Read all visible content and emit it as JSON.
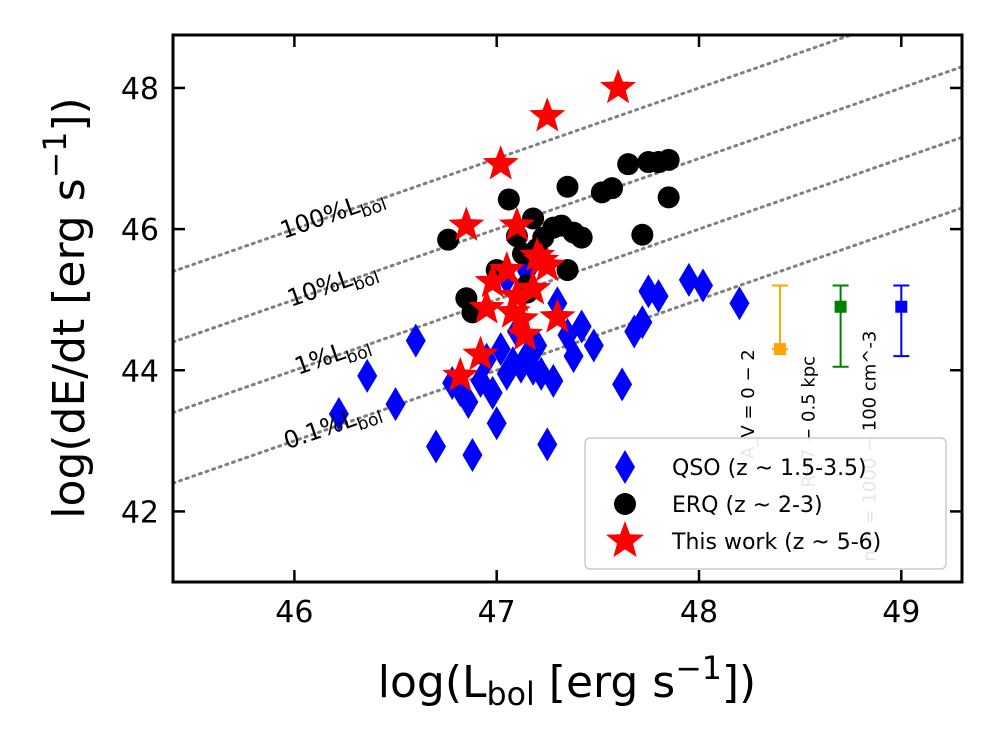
{
  "chart_data": {
    "type": "scatter",
    "xlabel": {
      "prefix": "log(L",
      "sub": "bol",
      "mid": " [erg s",
      "sup": "−1",
      "suffix": "])"
    },
    "ylabel": {
      "prefix": "log(dE/dt [erg s",
      "sup": "−1",
      "suffix": "])"
    },
    "xlim": [
      45.4,
      49.3
    ],
    "ylim": [
      41.0,
      48.75
    ],
    "xticks": [
      46,
      47,
      48,
      49
    ],
    "yticks": [
      42,
      44,
      46,
      48
    ],
    "ref_lines": [
      {
        "label": "100%L",
        "label_sub": "bol",
        "offset": 0.0,
        "label_at": [
          46.2,
          46.0
        ]
      },
      {
        "label": "10%L",
        "label_sub": "bol",
        "offset": -1.0,
        "label_at": [
          46.2,
          45.0
        ]
      },
      {
        "label": "1%L",
        "label_sub": "bol",
        "offset": -2.0,
        "label_at": [
          46.2,
          44.0
        ]
      },
      {
        "label": "0.1%L",
        "label_sub": "bol",
        "offset": -3.0,
        "label_at": [
          46.2,
          43.0
        ]
      }
    ],
    "series": [
      {
        "name": "QSO (z ~ 1.5-3.5)",
        "marker": "diamond",
        "color": "#0000ff",
        "points": [
          [
            46.22,
            43.38
          ],
          [
            46.36,
            43.92
          ],
          [
            46.5,
            43.52
          ],
          [
            46.6,
            44.42
          ],
          [
            46.7,
            42.92
          ],
          [
            46.78,
            43.82
          ],
          [
            46.82,
            43.72
          ],
          [
            46.86,
            43.55
          ],
          [
            46.88,
            42.8
          ],
          [
            46.92,
            43.85
          ],
          [
            46.95,
            44.15
          ],
          [
            46.98,
            43.68
          ],
          [
            47.0,
            43.25
          ],
          [
            47.02,
            44.3
          ],
          [
            47.05,
            43.95
          ],
          [
            47.08,
            44.1
          ],
          [
            47.1,
            44.55
          ],
          [
            47.12,
            44.05
          ],
          [
            47.15,
            44.2
          ],
          [
            47.18,
            44.02
          ],
          [
            47.2,
            44.35
          ],
          [
            47.22,
            43.95
          ],
          [
            47.25,
            42.95
          ],
          [
            47.28,
            43.85
          ],
          [
            47.3,
            44.95
          ],
          [
            47.35,
            44.5
          ],
          [
            47.38,
            44.2
          ],
          [
            47.42,
            44.62
          ],
          [
            47.48,
            44.35
          ],
          [
            47.62,
            43.8
          ],
          [
            47.68,
            44.55
          ],
          [
            47.72,
            44.68
          ],
          [
            47.75,
            45.12
          ],
          [
            47.8,
            45.05
          ],
          [
            47.95,
            45.28
          ],
          [
            48.02,
            45.2
          ],
          [
            48.2,
            44.95
          ],
          [
            47.15,
            45.4
          ],
          [
            47.05,
            45.3
          ]
        ]
      },
      {
        "name": "ERQ (z ~ 2-3)",
        "marker": "circle",
        "color": "#000000",
        "points": [
          [
            46.76,
            45.85
          ],
          [
            46.85,
            45.02
          ],
          [
            46.88,
            44.82
          ],
          [
            47.0,
            45.42
          ],
          [
            47.06,
            46.42
          ],
          [
            47.1,
            45.9
          ],
          [
            47.13,
            45.65
          ],
          [
            47.15,
            45.2
          ],
          [
            47.18,
            46.15
          ],
          [
            47.2,
            45.72
          ],
          [
            47.23,
            45.88
          ],
          [
            47.28,
            46.02
          ],
          [
            47.32,
            46.05
          ],
          [
            47.35,
            45.42
          ],
          [
            47.38,
            45.95
          ],
          [
            47.42,
            45.88
          ],
          [
            47.35,
            46.6
          ],
          [
            47.52,
            46.52
          ],
          [
            47.57,
            46.58
          ],
          [
            47.65,
            46.92
          ],
          [
            47.72,
            45.92
          ],
          [
            47.75,
            46.95
          ],
          [
            47.8,
            46.95
          ],
          [
            47.85,
            46.98
          ],
          [
            47.85,
            46.45
          ],
          [
            47.15,
            45.1
          ]
        ]
      },
      {
        "name": "This work (z ~ 5-6)",
        "marker": "star",
        "color": "#ff0000",
        "points": [
          [
            46.82,
            43.92
          ],
          [
            46.92,
            44.22
          ],
          [
            46.95,
            44.88
          ],
          [
            46.98,
            45.25
          ],
          [
            47.05,
            45.42
          ],
          [
            47.08,
            44.82
          ],
          [
            47.1,
            45.05
          ],
          [
            47.12,
            44.72
          ],
          [
            47.14,
            44.5
          ],
          [
            47.18,
            45.15
          ],
          [
            47.2,
            45.62
          ],
          [
            47.22,
            45.55
          ],
          [
            47.25,
            45.48
          ],
          [
            47.3,
            44.75
          ],
          [
            46.85,
            46.05
          ],
          [
            47.02,
            46.92
          ],
          [
            47.1,
            46.05
          ],
          [
            47.25,
            47.6
          ],
          [
            47.6,
            48.0
          ]
        ]
      }
    ],
    "error_bars": [
      {
        "label": "A_V = 0 − 2",
        "color": "#ffa500",
        "x": 48.4,
        "y": 44.3,
        "y_low": 44.3,
        "y_high": 45.2
      },
      {
        "label": "R=7 − 0.5 kpc",
        "color": "#008000",
        "x": 48.7,
        "y": 44.9,
        "y_low": 44.05,
        "y_high": 45.2
      },
      {
        "label": "n_e = 1000 − 100 cm^-3",
        "color": "#0000ff",
        "x": 49.0,
        "y": 44.9,
        "y_low": 44.2,
        "y_high": 45.2
      }
    ],
    "legend": {
      "position": "lower-right",
      "entries": [
        {
          "marker": "diamond",
          "color": "#0000ff",
          "label": "QSO (z ~ 1.5-3.5)"
        },
        {
          "marker": "circle",
          "color": "#000000",
          "label": "ERQ (z ~ 2-3)"
        },
        {
          "marker": "star",
          "color": "#ff0000",
          "label": "This work (z ~ 5-6)"
        }
      ]
    },
    "grid": false
  }
}
